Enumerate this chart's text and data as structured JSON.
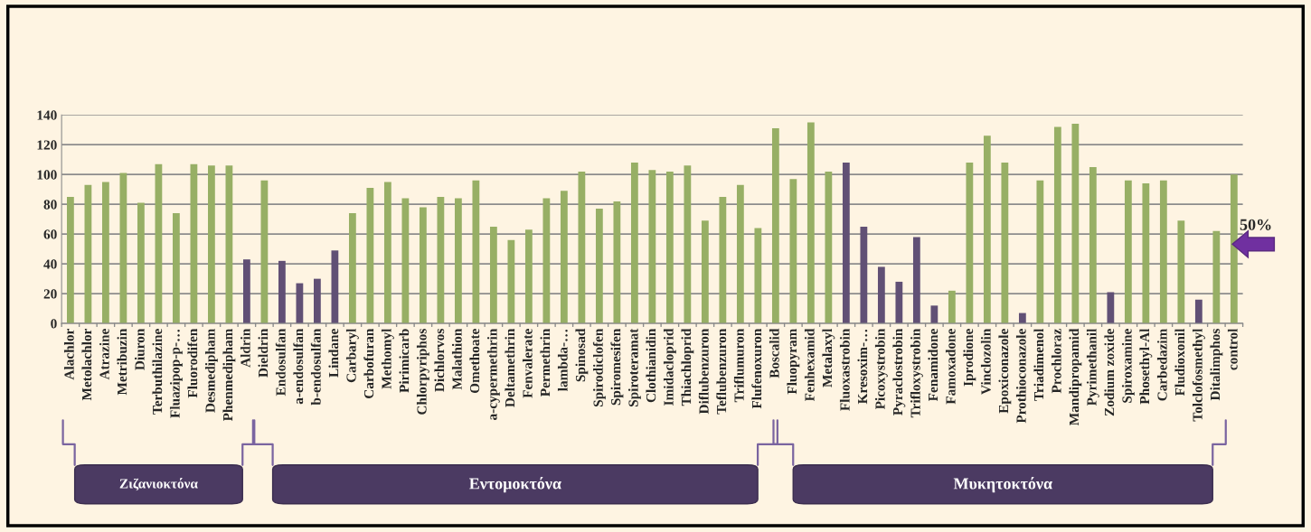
{
  "chart_data": {
    "type": "bar",
    "categories": [
      "Alachlor",
      "Metolachlor",
      "Atrazine",
      "Metribuzin",
      "Diuron",
      "Terbuthilazine",
      "Fluazipop-p-…",
      "Fluorodifen",
      "Desmedipham",
      "Phenmedipham",
      "Aldrin",
      "Dieldrin",
      "Endosulfan",
      "a-endosulfan",
      "b-endosulfan",
      "Lindane",
      "Carbaryl",
      "Carbofuran",
      "Methomyl",
      "Pirimicarb",
      "Chlorpyriphos",
      "Dichlorvos",
      "Malathion",
      "Omethoate",
      "a-cypermethrin",
      "Deltamethrin",
      "Fenvalerate",
      "Permethrin",
      "lambda-…",
      "Spinosad",
      "Spirodiclofen",
      "Spiromesifen",
      "Spiroteramat",
      "Clothianidin",
      "Imidacloprid",
      "Thiachloprid",
      "Diflubenzuron",
      "Teflubenzuron",
      "Triflumuron",
      "Flufenoxuron",
      "Boscalid",
      "Fluopyram",
      "Fenhexamid",
      "Metalaxyl",
      "Fluoxastrobin",
      "Kresoxim-…",
      "Picoxystrobin",
      "Pyraclostrobin",
      "Trifloxystrobin",
      "Fenamidone",
      "Famoxadone",
      "Iprodione",
      "Vinclozolin",
      "Epoxiconazole",
      "Prothioconazole",
      "Triadimenol",
      "Prochloraz",
      "Mandipropamid",
      "Pyrimethanil",
      "Zodium zoxide",
      "Spiroxamine",
      "Phosethyl-Al",
      "Carbedazim",
      "Fludioxonil",
      "Tolclofosmethyl",
      "Ditalimphos",
      "control"
    ],
    "values": [
      85,
      93,
      95,
      101,
      81,
      107,
      74,
      107,
      106,
      106,
      43,
      96,
      42,
      27,
      30,
      49,
      74,
      91,
      95,
      84,
      78,
      85,
      84,
      96,
      65,
      56,
      63,
      84,
      89,
      102,
      77,
      82,
      108,
      103,
      102,
      106,
      69,
      85,
      93,
      64,
      131,
      97,
      135,
      102,
      108,
      65,
      38,
      28,
      58,
      12,
      22,
      108,
      126,
      108,
      7,
      96,
      132,
      134,
      105,
      21,
      96,
      94,
      96,
      69,
      16,
      62,
      100
    ],
    "colors": [
      "#9bbb59",
      "#9bbb59",
      "#9bbb59",
      "#9bbb59",
      "#9bbb59",
      "#9bbb59",
      "#9bbb59",
      "#9bbb59",
      "#9bbb59",
      "#9bbb59",
      "#604a7b",
      "#9bbb59",
      "#604a7b",
      "#604a7b",
      "#604a7b",
      "#604a7b",
      "#9bbb59",
      "#9bbb59",
      "#9bbb59",
      "#9bbb59",
      "#9bbb59",
      "#9bbb59",
      "#9bbb59",
      "#9bbb59",
      "#9bbb59",
      "#9bbb59",
      "#9bbb59",
      "#9bbb59",
      "#9bbb59",
      "#9bbb59",
      "#9bbb59",
      "#9bbb59",
      "#9bbb59",
      "#9bbb59",
      "#9bbb59",
      "#9bbb59",
      "#9bbb59",
      "#9bbb59",
      "#9bbb59",
      "#9bbb59",
      "#9bbb59",
      "#9bbb59",
      "#9bbb59",
      "#9bbb59",
      "#604a7b",
      "#604a7b",
      "#604a7b",
      "#604a7b",
      "#604a7b",
      "#604a7b",
      "#9bbb59",
      "#9bbb59",
      "#9bbb59",
      "#9bbb59",
      "#604a7b",
      "#9bbb59",
      "#9bbb59",
      "#9bbb59",
      "#9bbb59",
      "#604a7b",
      "#9bbb59",
      "#9bbb59",
      "#9bbb59",
      "#9bbb59",
      "#604a7b",
      "#9bbb59",
      "#9bbb59"
    ],
    "ylim": [
      0,
      140
    ],
    "yticks": [
      0,
      20,
      40,
      60,
      80,
      100,
      120,
      140
    ],
    "grid": "y",
    "legend": false,
    "annotations": [
      "50%",
      "Ζιζανιοκτόνα",
      "Εντομοκτόνα",
      "Μυκητοκτόνα"
    ]
  }
}
